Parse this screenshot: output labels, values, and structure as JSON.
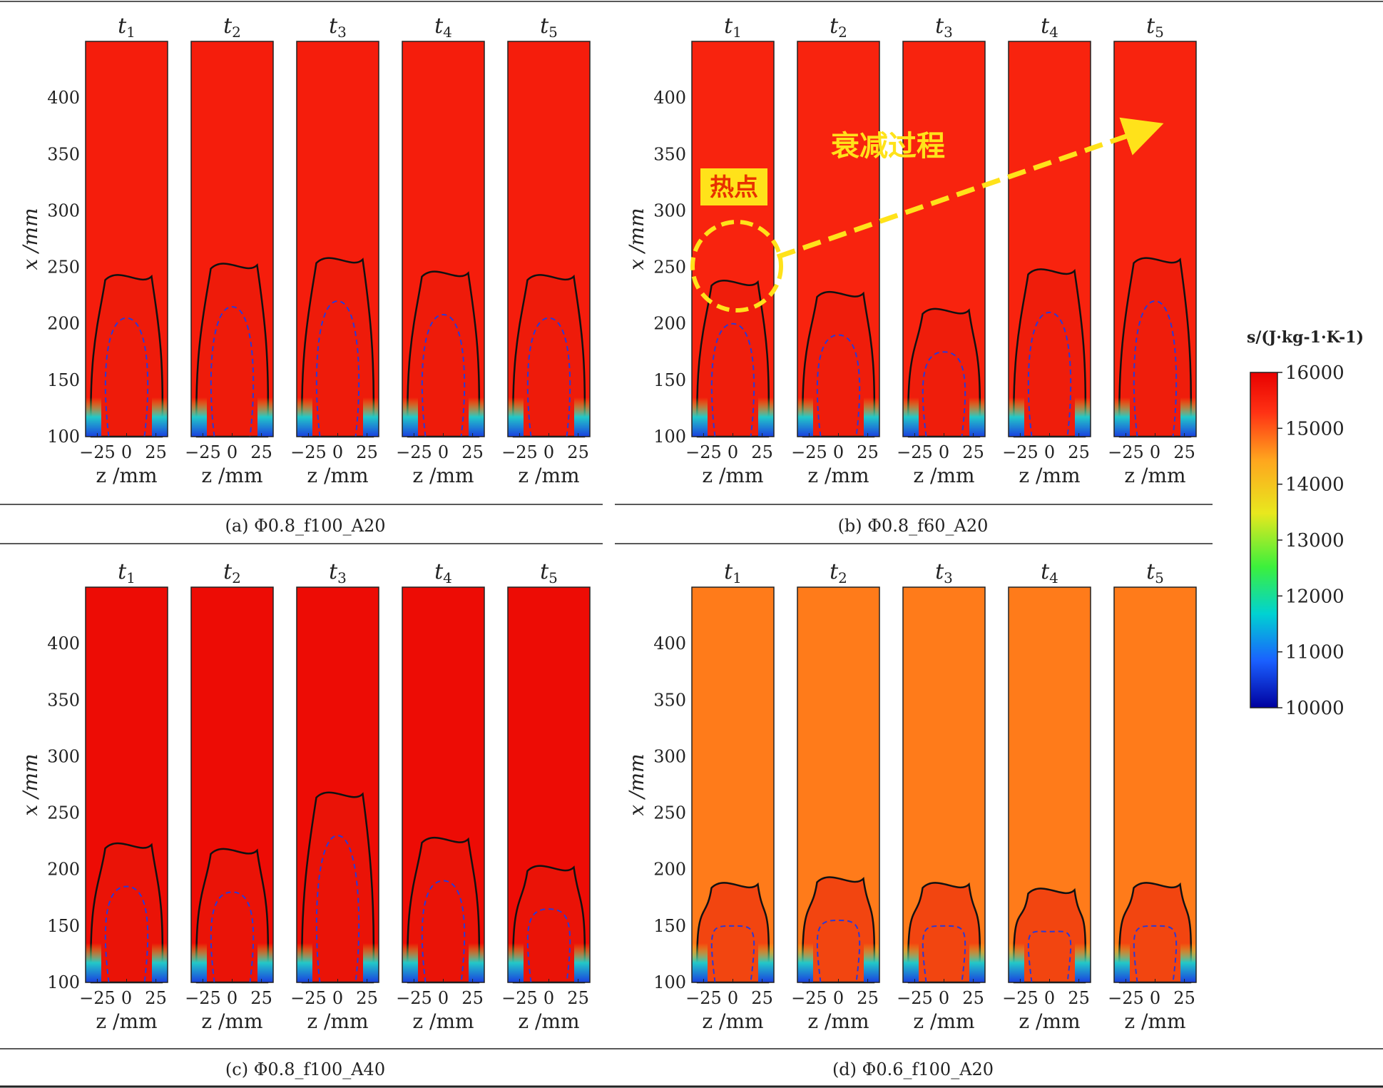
{
  "figure": {
    "time_labels": [
      "t1",
      "t2",
      "t3",
      "t4",
      "t5"
    ],
    "x_axis_label": "z /mm",
    "y_axis_label": "x /mm",
    "annotation_hotspot": "热点",
    "annotation_decay": "衰减过程"
  },
  "chart_data": [
    {
      "type": "heatmap",
      "caption": "(a) Φ0.8_f100_A20",
      "fill_level": 15500,
      "x_ticks": [
        -25,
        0,
        25
      ],
      "y_ticks": [
        100,
        150,
        200,
        250,
        300,
        350,
        400
      ],
      "xlim": [
        -35,
        35
      ],
      "ylim": [
        100,
        450
      ],
      "flame_top": [
        245,
        255,
        260,
        248,
        245
      ]
    },
    {
      "type": "heatmap",
      "caption": "(b) Φ0.8_f60_A20",
      "fill_level": 15400,
      "x_ticks": [
        -25,
        0,
        25
      ],
      "y_ticks": [
        100,
        150,
        200,
        250,
        300,
        350,
        400
      ],
      "xlim": [
        -35,
        35
      ],
      "ylim": [
        100,
        450
      ],
      "flame_top": [
        240,
        230,
        215,
        250,
        260
      ]
    },
    {
      "type": "heatmap",
      "caption": "(c) Φ0.8_f100_A40",
      "fill_level": 15800,
      "x_ticks": [
        -25,
        0,
        25
      ],
      "y_ticks": [
        100,
        150,
        200,
        250,
        300,
        350,
        400
      ],
      "xlim": [
        -35,
        35
      ],
      "ylim": [
        100,
        450
      ],
      "flame_top": [
        225,
        220,
        270,
        230,
        205
      ]
    },
    {
      "type": "heatmap",
      "caption": "(d) Φ0.6_f100_A20",
      "fill_level": 14600,
      "x_ticks": [
        -25,
        0,
        25
      ],
      "y_ticks": [
        100,
        150,
        200,
        250,
        300,
        350,
        400
      ],
      "xlim": [
        -35,
        35
      ],
      "ylim": [
        100,
        450
      ],
      "flame_top": [
        190,
        195,
        190,
        185,
        190
      ]
    }
  ],
  "colorbar": {
    "label": "s/(J·kg-1·K-1)",
    "min": 10000,
    "max": 16000,
    "ticks": [
      10000,
      11000,
      12000,
      13000,
      14000,
      15000,
      16000
    ],
    "colors": [
      "#00009f",
      "#1a60ff",
      "#00d2d2",
      "#3cf03c",
      "#e8e81e",
      "#ffa51e",
      "#ff3214",
      "#e80000"
    ]
  }
}
